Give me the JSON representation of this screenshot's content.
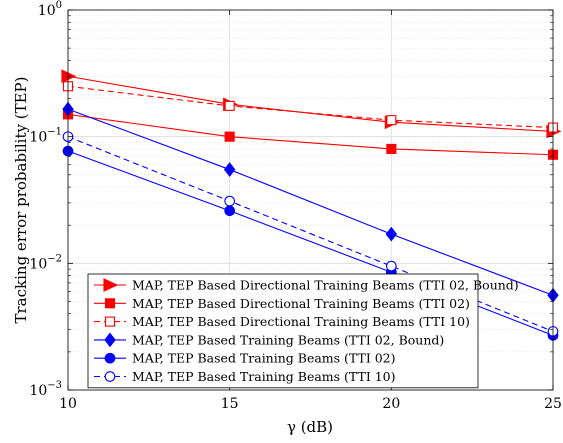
{
  "chart_data": {
    "type": "line",
    "title": "",
    "xlabel": "γ (dB)",
    "ylabel": "Tracking error probability (TEP)",
    "xlim": [
      10,
      25
    ],
    "ylim": [
      0.001,
      1
    ],
    "yscale": "log",
    "grid": true,
    "legend_position": "bottom-left",
    "x_ticks": [
      {
        "value": 10,
        "label": "10"
      },
      {
        "value": 15,
        "label": "15"
      },
      {
        "value": 20,
        "label": "20"
      },
      {
        "value": 25,
        "label": "25"
      }
    ],
    "y_ticks": [
      {
        "value": 0.001,
        "base": "10",
        "exp": "−3"
      },
      {
        "value": 0.01,
        "base": "10",
        "exp": "−2"
      },
      {
        "value": 0.1,
        "base": "10",
        "exp": "−1"
      },
      {
        "value": 1,
        "base": "10",
        "exp": "0"
      }
    ],
    "x": [
      10,
      15,
      20,
      25
    ],
    "series": [
      {
        "name": "MAP, TEP Based Directional Training Beams (TTI 02, Bound)",
        "color": "#ff0000",
        "dash": "solid",
        "marker": "triangle-right",
        "filled": true,
        "values": [
          0.3,
          0.18,
          0.13,
          0.11
        ]
      },
      {
        "name": "MAP, TEP Based Directional Training Beams (TTI 02)",
        "color": "#ff0000",
        "dash": "solid",
        "marker": "square",
        "filled": true,
        "values": [
          0.15,
          0.1,
          0.08,
          0.072
        ]
      },
      {
        "name": "MAP, TEP Based Directional Training Beams (TTI 10)",
        "color": "#ff0000",
        "dash": "dashed",
        "marker": "square",
        "filled": false,
        "values": [
          0.25,
          0.175,
          0.135,
          0.118
        ]
      },
      {
        "name": "MAP, TEP Based Training Beams (TTI 02, Bound)",
        "color": "#0000ff",
        "dash": "solid",
        "marker": "diamond",
        "filled": true,
        "values": [
          0.165,
          0.055,
          0.017,
          0.0056
        ]
      },
      {
        "name": "MAP, TEP Based Training Beams (TTI 02)",
        "color": "#0000ff",
        "dash": "solid",
        "marker": "circle",
        "filled": true,
        "values": [
          0.077,
          0.026,
          0.0085,
          0.0027
        ]
      },
      {
        "name": "MAP, TEP Based Training Beams (TTI 10)",
        "color": "#0000ff",
        "dash": "dashed",
        "marker": "circle",
        "filled": false,
        "values": [
          0.1,
          0.031,
          0.0095,
          0.0029
        ]
      }
    ]
  }
}
